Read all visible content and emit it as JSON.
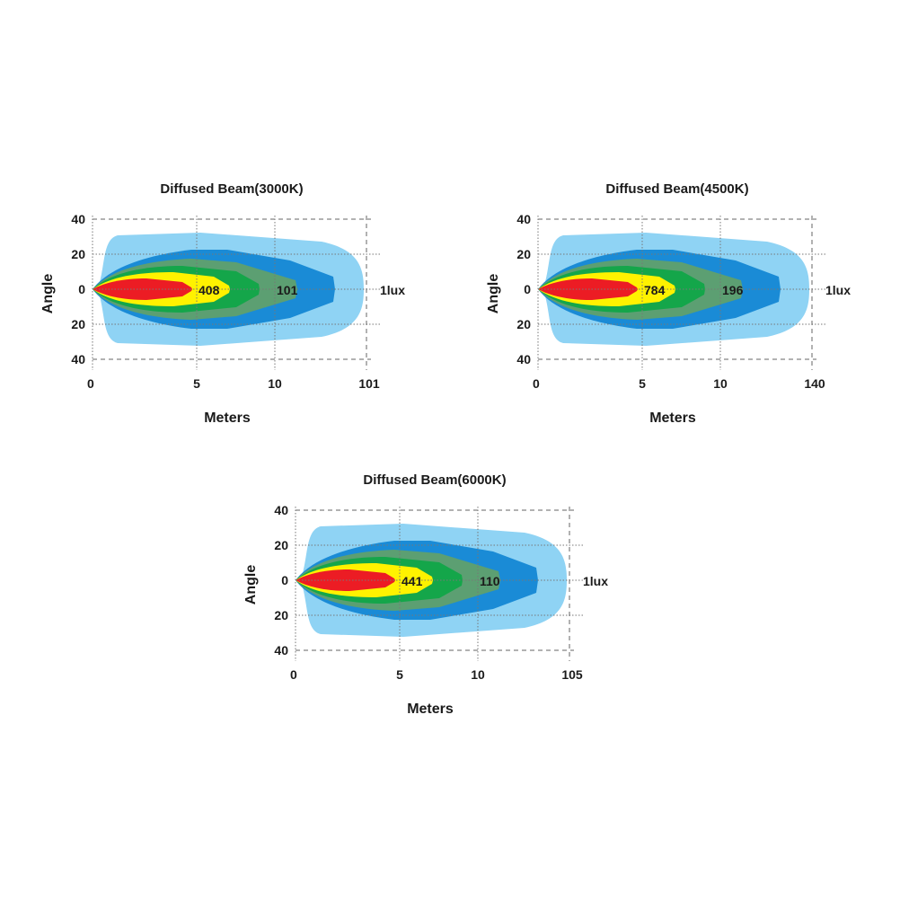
{
  "chart_data": [
    {
      "type": "heatmap",
      "title": "Diffused Beam(3000K)",
      "xlabel": "Meters",
      "ylabel": "Angle",
      "x_ticks": [
        "0",
        "5",
        "10",
        "101"
      ],
      "y_ticks": [
        "40",
        "20",
        "0",
        "20",
        "40"
      ],
      "center_labels": [
        {
          "x": 5,
          "text": "408"
        },
        {
          "x": 10,
          "text": "101"
        }
      ],
      "end_label": "1lux",
      "colors": [
        "#8fd3f4",
        "#1a8bd6",
        "#5c9f72",
        "#14a64a",
        "#fff200",
        "#ec1c24"
      ]
    },
    {
      "type": "heatmap",
      "title": "Diffused Beam(4500K)",
      "xlabel": "Meters",
      "ylabel": "Angle",
      "x_ticks": [
        "0",
        "5",
        "10",
        "140"
      ],
      "y_ticks": [
        "40",
        "20",
        "0",
        "20",
        "40"
      ],
      "center_labels": [
        {
          "x": 5,
          "text": "784"
        },
        {
          "x": 10,
          "text": "196"
        }
      ],
      "end_label": "1lux",
      "colors": [
        "#8fd3f4",
        "#1a8bd6",
        "#5c9f72",
        "#14a64a",
        "#fff200",
        "#ec1c24"
      ]
    },
    {
      "type": "heatmap",
      "title": "Diffused Beam(6000K)",
      "xlabel": "Meters",
      "ylabel": "Angle",
      "x_ticks": [
        "0",
        "5",
        "10",
        "105"
      ],
      "y_ticks": [
        "40",
        "20",
        "0",
        "20",
        "40"
      ],
      "center_labels": [
        {
          "x": 5,
          "text": "441"
        },
        {
          "x": 10,
          "text": "110"
        }
      ],
      "end_label": "1lux",
      "colors": [
        "#8fd3f4",
        "#1a8bd6",
        "#5c9f72",
        "#14a64a",
        "#fff200",
        "#ec1c24"
      ]
    }
  ]
}
